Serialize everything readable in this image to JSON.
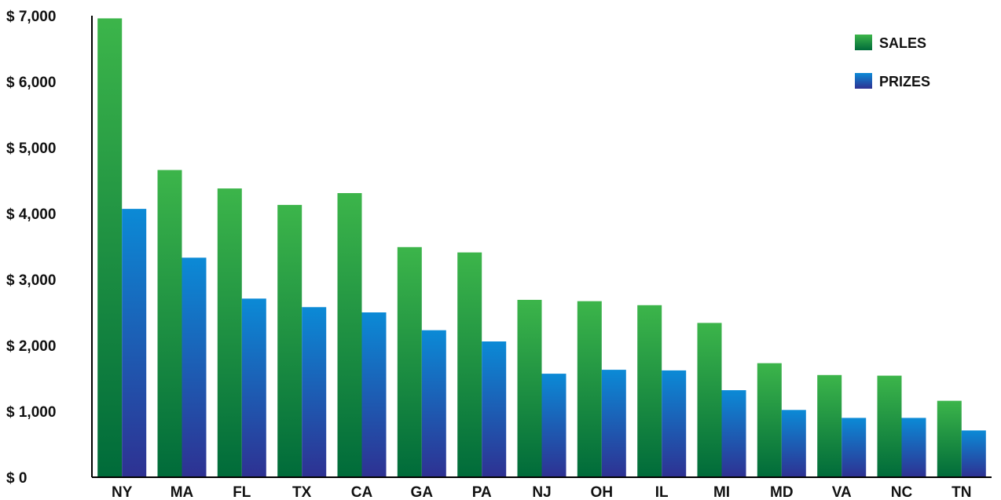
{
  "chart_data": {
    "type": "bar",
    "categories": [
      "NY",
      "MA",
      "FL",
      "TX",
      "CA",
      "GA",
      "PA",
      "NJ",
      "OH",
      "IL",
      "MI",
      "MD",
      "VA",
      "NC",
      "TN"
    ],
    "series": [
      {
        "name": "SALES",
        "color": "#1e9a45",
        "values": [
          6960,
          4660,
          4380,
          4130,
          4310,
          3490,
          3410,
          2690,
          2670,
          2610,
          2340,
          1730,
          1550,
          1540,
          1160
        ]
      },
      {
        "name": "PRIZES",
        "color": "#1a7fd0",
        "values": [
          4070,
          3330,
          2710,
          2580,
          2500,
          2230,
          2060,
          1570,
          1630,
          1620,
          1320,
          1020,
          900,
          900,
          710
        ]
      }
    ],
    "y_ticks": [
      "$ 0",
      "$ 1,000",
      "$ 2,000",
      "$ 3,000",
      "$ 4,000",
      "$ 5,000",
      "$ 6,000",
      "$ 7,000"
    ],
    "ylim": [
      0,
      7000
    ],
    "legend_position": "top-right",
    "grid": false,
    "title": "",
    "xlabel": "",
    "ylabel": ""
  }
}
